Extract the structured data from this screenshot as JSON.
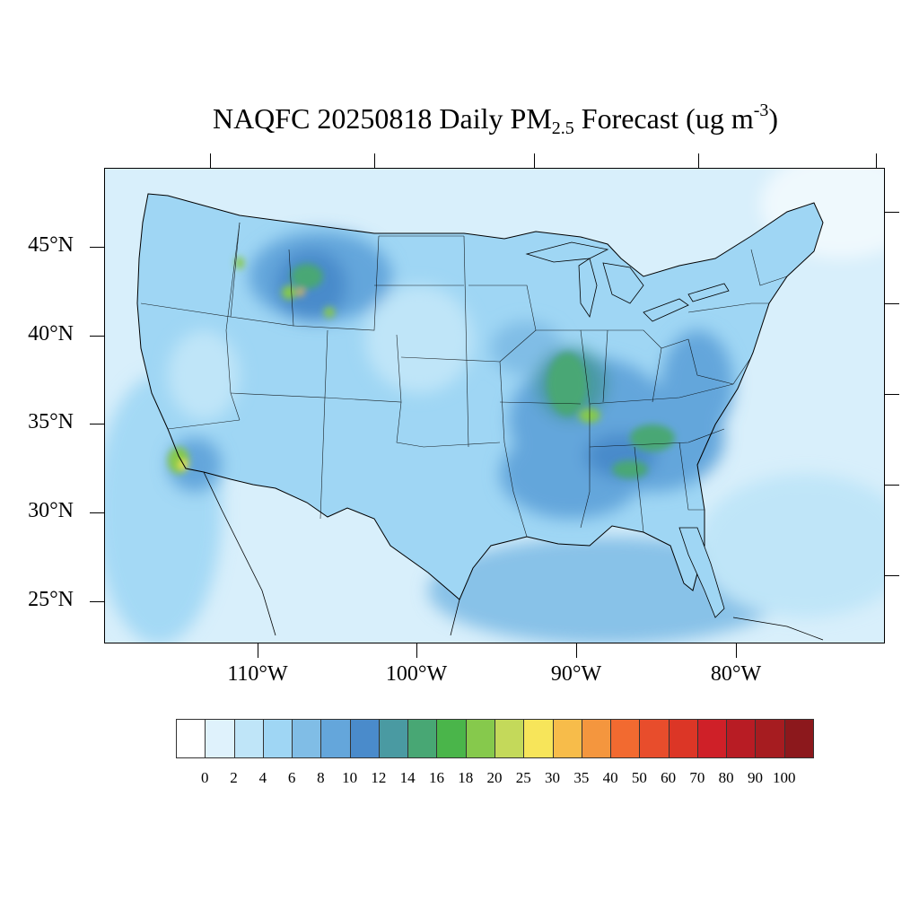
{
  "title": {
    "prefix": "NAQFC 20250818 Daily PM",
    "sub": "2.5",
    "mid": " Forecast (ug m",
    "sup": "-3",
    "suffix": ")"
  },
  "lat_labels": [
    "45°N",
    "40°N",
    "35°N",
    "30°N",
    "25°N"
  ],
  "lon_labels": [
    "110°W",
    "100°W",
    "90°W",
    "80°W"
  ],
  "colorbar": {
    "labels": [
      "0",
      "2",
      "4",
      "6",
      "8",
      "10",
      "12",
      "14",
      "16",
      "18",
      "20",
      "25",
      "30",
      "35",
      "40",
      "50",
      "60",
      "70",
      "80",
      "90",
      "100"
    ],
    "colors": [
      "#ffffff",
      "#dff2fc",
      "#bfe5f8",
      "#9fd6f4",
      "#80bde6",
      "#64a6db",
      "#4a8bcb",
      "#4a9aa2",
      "#48a774",
      "#4ab54a",
      "#86c94c",
      "#c4d95a",
      "#f7e55a",
      "#f7bc4a",
      "#f4963e",
      "#f26a30",
      "#e84d2c",
      "#dc3626",
      "#cf2028",
      "#b81c24",
      "#a61c20",
      "#8c181c"
    ]
  },
  "map": {
    "background_color": "#d8effb",
    "land_fill": "#8fc5ec",
    "boundary_color": "#000000"
  }
}
